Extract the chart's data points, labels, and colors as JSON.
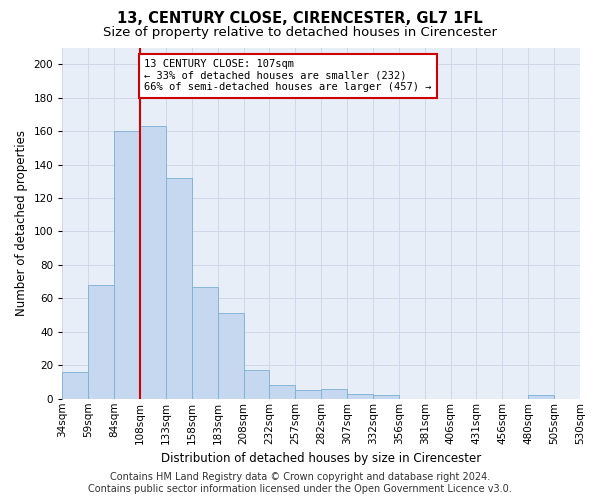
{
  "title1": "13, CENTURY CLOSE, CIRENCESTER, GL7 1FL",
  "title2": "Size of property relative to detached houses in Cirencester",
  "xlabel": "Distribution of detached houses by size in Cirencester",
  "ylabel": "Number of detached properties",
  "footer1": "Contains HM Land Registry data © Crown copyright and database right 2024.",
  "footer2": "Contains public sector information licensed under the Open Government Licence v3.0.",
  "annotation_line1": "13 CENTURY CLOSE: 107sqm",
  "annotation_line2": "← 33% of detached houses are smaller (232)",
  "annotation_line3": "66% of semi-detached houses are larger (457) →",
  "bar_values": [
    16,
    68,
    160,
    163,
    132,
    67,
    51,
    17,
    8,
    5,
    6,
    3,
    2,
    0,
    0,
    0,
    0,
    0,
    2,
    0
  ],
  "bin_labels": [
    "34sqm",
    "59sqm",
    "84sqm",
    "108sqm",
    "133sqm",
    "158sqm",
    "183sqm",
    "208sqm",
    "232sqm",
    "257sqm",
    "282sqm",
    "307sqm",
    "332sqm",
    "356sqm",
    "381sqm",
    "406sqm",
    "431sqm",
    "456sqm",
    "480sqm",
    "505sqm",
    "530sqm"
  ],
  "bar_color": "#c5d8f0",
  "bar_edge_color": "#7bafd4",
  "vline_color": "#cc0000",
  "annotation_box_color": "#cc0000",
  "ylim": [
    0,
    210
  ],
  "yticks": [
    0,
    20,
    40,
    60,
    80,
    100,
    120,
    140,
    160,
    180,
    200
  ],
  "grid_color": "#d0d8e8",
  "background_color": "#e8eef8",
  "title_fontsize": 10.5,
  "subtitle_fontsize": 9.5,
  "ylabel_fontsize": 8.5,
  "xlabel_fontsize": 8.5,
  "tick_fontsize": 7.5,
  "annotation_fontsize": 7.5,
  "footer_fontsize": 7
}
